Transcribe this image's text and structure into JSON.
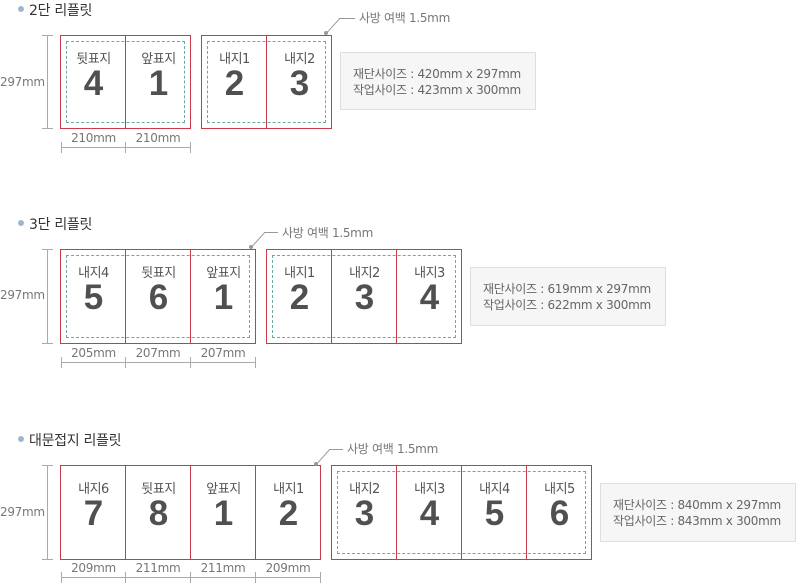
{
  "sections": [
    {
      "title": "2단 리플릿",
      "height_label": "297mm",
      "margin_note": "사방 여백 1.5mm",
      "outer_pages": [
        {
          "label": "뒷표지",
          "number": "4"
        },
        {
          "label": "앞표지",
          "number": "1"
        }
      ],
      "inner_pages": [
        {
          "label": "내지1",
          "number": "2"
        },
        {
          "label": "내지2",
          "number": "3"
        }
      ],
      "widths": [
        "210mm",
        "210mm"
      ],
      "info": {
        "cut": "재단사이즈 : 420mm x 297mm",
        "work": "작업사이즈 : 423mm x 300mm"
      }
    },
    {
      "title": "3단 리플릿",
      "height_label": "297mm",
      "margin_note": "사방 여백 1.5mm",
      "outer_pages": [
        {
          "label": "내지4",
          "number": "5"
        },
        {
          "label": "뒷표지",
          "number": "6"
        },
        {
          "label": "앞표지",
          "number": "1"
        }
      ],
      "inner_pages": [
        {
          "label": "내지1",
          "number": "2"
        },
        {
          "label": "내지2",
          "number": "3"
        },
        {
          "label": "내지3",
          "number": "4"
        }
      ],
      "widths": [
        "205mm",
        "207mm",
        "207mm"
      ],
      "info": {
        "cut": "재단사이즈 : 619mm x 297mm",
        "work": "작업사이즈 : 622mm x 300mm"
      }
    },
    {
      "title": "대문접지 리플릿",
      "height_label": "297mm",
      "margin_note": "사방 여백 1.5mm",
      "outer_pages": [
        {
          "label": "내지6",
          "number": "7"
        },
        {
          "label": "뒷표지",
          "number": "8"
        },
        {
          "label": "앞표지",
          "number": "1"
        },
        {
          "label": "내지1",
          "number": "2"
        }
      ],
      "inner_pages": [
        {
          "label": "내지2",
          "number": "3"
        },
        {
          "label": "내지3",
          "number": "4"
        },
        {
          "label": "내지4",
          "number": "5"
        },
        {
          "label": "내지5",
          "number": "6"
        }
      ],
      "widths": [
        "209mm",
        "211mm",
        "211mm",
        "209mm"
      ],
      "info": {
        "cut": "재단사이즈 : 840mm x 297mm",
        "work": "작업사이즈 : 843mm x 300mm"
      }
    }
  ],
  "colors": {
    "trim_line": "#c73b4c",
    "safe_line": "#6ea8a3",
    "bullet": "#9fb6d1"
  }
}
